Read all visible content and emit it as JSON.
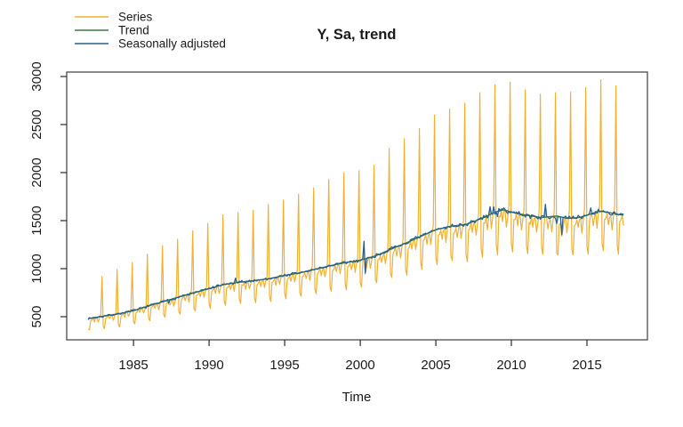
{
  "title": "Y, Sa, trend",
  "axes": {
    "x": {
      "label": "Time",
      "ticks": [
        1985,
        1990,
        1995,
        2000,
        2005,
        2010,
        2015
      ]
    },
    "y": {
      "label": "",
      "ticks": [
        500,
        1000,
        1500,
        2000,
        2500,
        3000
      ]
    }
  },
  "legend": {
    "position": "topleft",
    "items": [
      {
        "label": "Series",
        "color": "#F0B032"
      },
      {
        "label": "Trend",
        "color": "#3B7A3E"
      },
      {
        "label": "Seasonally adjusted",
        "color": "#27618F"
      }
    ]
  },
  "chart_data": {
    "type": "line",
    "title": "Y, Sa, trend",
    "xlabel": "Time",
    "ylabel": "",
    "grid": false,
    "legend_position": "topleft",
    "frequency": 12,
    "x_start": 1982.0,
    "x_end": 2017.4167,
    "xlim": [
      1980.58,
      2019.0
    ],
    "ylim": [
      259,
      3046
    ],
    "x_ticks": [
      1985,
      1990,
      1995,
      2000,
      2005,
      2010,
      2015
    ],
    "y_ticks": [
      500,
      1000,
      1500,
      2000,
      2500,
      3000
    ],
    "series_names": [
      "Series",
      "Trend",
      "Seasonally adjusted"
    ],
    "series_colors": [
      "#F0B032",
      "#3B7A3E",
      "#27618F"
    ],
    "trend_knots": [
      [
        1982.0,
        480
      ],
      [
        1983,
        505
      ],
      [
        1984,
        530
      ],
      [
        1985,
        562
      ],
      [
        1986,
        612
      ],
      [
        1987,
        658
      ],
      [
        1988,
        705
      ],
      [
        1989,
        748
      ],
      [
        1990,
        792
      ],
      [
        1991,
        835
      ],
      [
        1992,
        858
      ],
      [
        1993,
        876
      ],
      [
        1994,
        896
      ],
      [
        1995,
        930
      ],
      [
        1996,
        956
      ],
      [
        1997,
        992
      ],
      [
        1998,
        1030
      ],
      [
        1999,
        1062
      ],
      [
        2000,
        1088
      ],
      [
        2001,
        1132
      ],
      [
        2002,
        1200
      ],
      [
        2003,
        1265
      ],
      [
        2004,
        1335
      ],
      [
        2005,
        1405
      ],
      [
        2006,
        1442
      ],
      [
        2007,
        1460
      ],
      [
        2008,
        1520
      ],
      [
        2009,
        1592
      ],
      [
        2009.5,
        1612
      ],
      [
        2010,
        1588
      ],
      [
        2011,
        1555
      ],
      [
        2012,
        1532
      ],
      [
        2013,
        1548
      ],
      [
        2013.7,
        1522
      ],
      [
        2014.5,
        1532
      ],
      [
        2015,
        1556
      ],
      [
        2015.8,
        1600
      ],
      [
        2016.3,
        1588
      ],
      [
        2017,
        1566
      ],
      [
        2017.4167,
        1556
      ]
    ],
    "seasonal_factors": [
      0.79,
      0.74,
      0.95,
      0.96,
      0.99,
      0.92,
      0.98,
      0.99,
      0.9,
      0.97,
      1.04,
      1.86
    ],
    "sa_anomalies": [
      [
        2000.25,
        185
      ],
      [
        2000.3333,
        -150
      ],
      [
        2008.5833,
        60
      ],
      [
        2008.8333,
        75
      ],
      [
        2009.0833,
        -50
      ],
      [
        2012.25,
        125
      ],
      [
        2013.0,
        -80
      ],
      [
        2013.3333,
        -185
      ],
      [
        2015.25,
        60
      ],
      [
        1991.75,
        35
      ],
      [
        1987.3333,
        -30
      ]
    ],
    "noise_seed": 7,
    "noise_base": 6,
    "noise_trend_scale": 0.014
  }
}
